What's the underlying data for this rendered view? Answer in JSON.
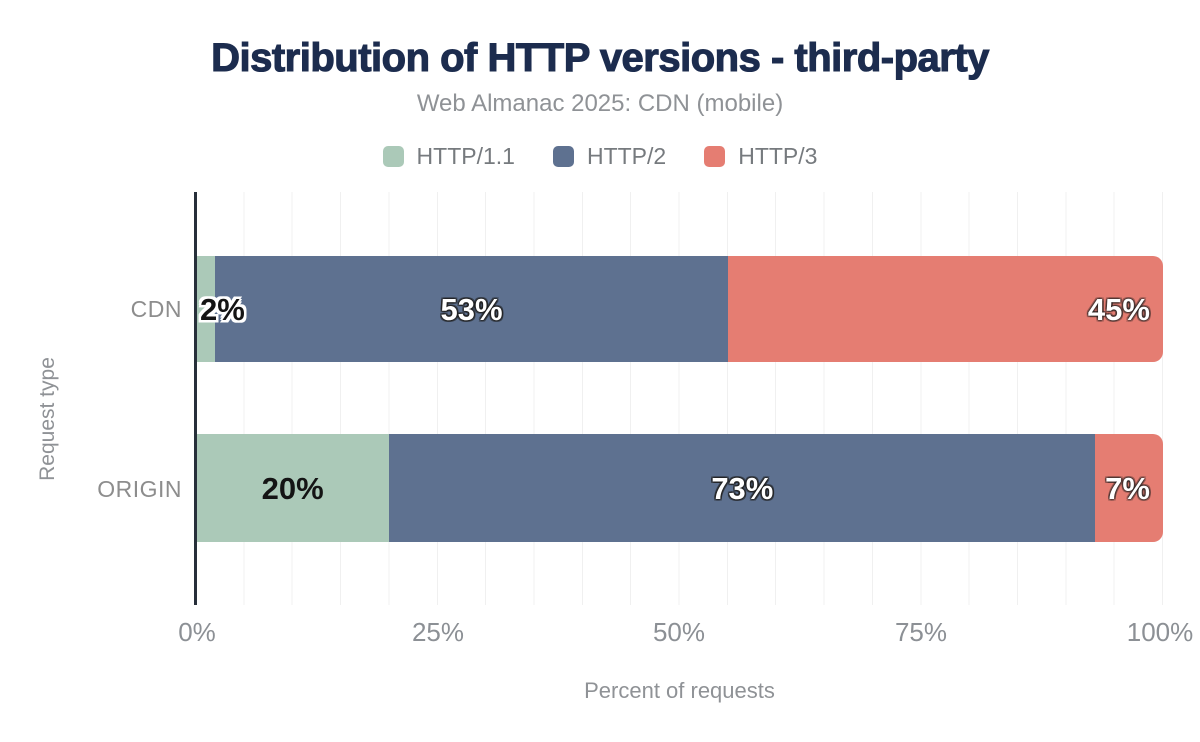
{
  "title": "Distribution of HTTP versions - third-party",
  "subtitle": "Web Almanac 2025: CDN (mobile)",
  "legend": [
    {
      "label": "HTTP/1.1",
      "color": "#abc9b8"
    },
    {
      "label": "HTTP/2",
      "color": "#5e7190"
    },
    {
      "label": "HTTP/3",
      "color": "#e57d72"
    }
  ],
  "colors": {
    "title": "#1c2c4e",
    "axis_line": "#272f3a",
    "gridline": "#f0f0f0",
    "muted_text": "#8f9296"
  },
  "chart_data": {
    "type": "bar",
    "orientation": "horizontal",
    "stacked": true,
    "title": "Distribution of HTTP versions - third-party",
    "subtitle": "Web Almanac 2025: CDN (mobile)",
    "categories": [
      "CDN",
      "ORIGIN"
    ],
    "series": [
      {
        "name": "HTTP/1.1",
        "color": "#abc9b8",
        "values": [
          2,
          20
        ],
        "label_color": "#141414",
        "label_outline": ""
      },
      {
        "name": "HTTP/2",
        "color": "#5e7190",
        "values": [
          53,
          73
        ],
        "label_color": "#ffffff",
        "label_outline": "rgba(30,30,30,0.55)"
      },
      {
        "name": "HTTP/3",
        "color": "#e57d72",
        "values": [
          45,
          7
        ],
        "label_color": "#ffffff",
        "label_outline": "rgba(30,30,30,0.35)"
      }
    ],
    "data_labels": {
      "CDN": [
        "2%",
        "53%",
        "45%"
      ],
      "ORIGIN": [
        "20%",
        "73%",
        "7%"
      ]
    },
    "xlabel": "Percent of requests",
    "ylabel": "Request type",
    "xticks": [
      "0%",
      "25%",
      "50%",
      "75%",
      "100%"
    ],
    "xlim": [
      0,
      100
    ],
    "grid": "vertical gridlines every 5%",
    "legend_position": "top-center"
  }
}
